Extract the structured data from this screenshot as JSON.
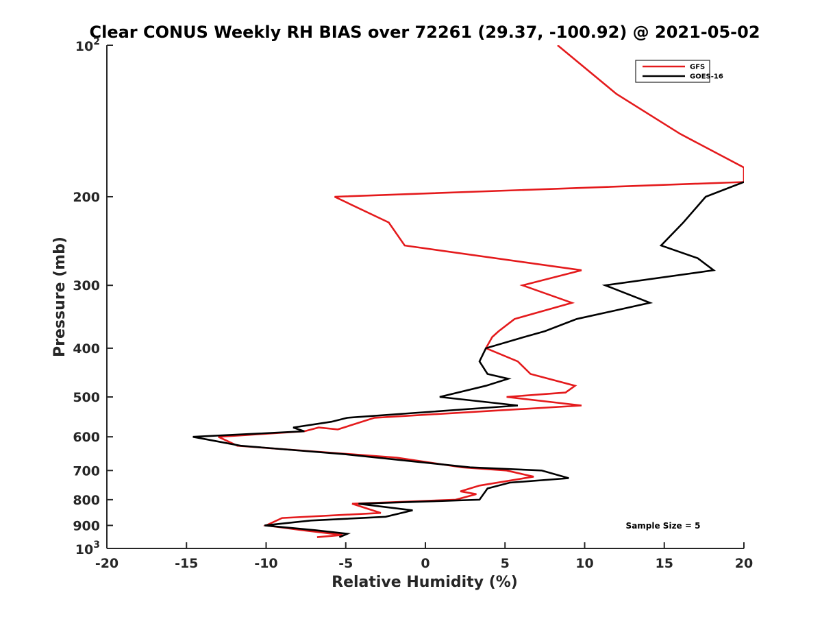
{
  "chart_data": {
    "type": "line",
    "title": "Clear CONUS Weekly RH BIAS over 72261 (29.37, -100.92) @ 2021-05-02",
    "xlabel": "Relative Humidity (%)",
    "ylabel": "Pressure (mb)",
    "xlim": [
      -20,
      20
    ],
    "ylim": [
      100,
      1000
    ],
    "y_scale": "log",
    "y_reversed": true,
    "x_ticks": [
      "-20",
      "-15",
      "-10",
      "-5",
      "0",
      "5",
      "10",
      "15",
      "20"
    ],
    "y_ticks": [
      {
        "value": 100,
        "base": "10",
        "exp": "2"
      },
      {
        "value": 200,
        "label": "200"
      },
      {
        "value": 300,
        "label": "300"
      },
      {
        "value": 400,
        "label": "400"
      },
      {
        "value": 500,
        "label": "500"
      },
      {
        "value": 600,
        "label": "600"
      },
      {
        "value": 700,
        "label": "700"
      },
      {
        "value": 800,
        "label": "800"
      },
      {
        "value": 900,
        "label": "900"
      },
      {
        "value": 1000,
        "base": "10",
        "exp": "3"
      }
    ],
    "legend_position": "top-right",
    "annotation": "Sample Size = 5",
    "series": [
      {
        "name": "GFS",
        "color": "#e41a1c",
        "points": [
          [
            8.3,
            100
          ],
          [
            12.0,
            125
          ],
          [
            16.0,
            150
          ],
          [
            20.0,
            175
          ],
          [
            20.0,
            187
          ],
          [
            -5.7,
            200
          ],
          [
            -2.3,
            225
          ],
          [
            -1.3,
            250
          ],
          [
            9.8,
            280
          ],
          [
            6.1,
            300
          ],
          [
            9.2,
            325
          ],
          [
            5.6,
            350
          ],
          [
            4.6,
            370
          ],
          [
            4.2,
            380
          ],
          [
            3.8,
            400
          ],
          [
            5.8,
            425
          ],
          [
            6.6,
            450
          ],
          [
            9.4,
            475
          ],
          [
            8.8,
            490
          ],
          [
            5.1,
            500
          ],
          [
            9.8,
            520
          ],
          [
            -3.2,
            550
          ],
          [
            -5.5,
            580
          ],
          [
            -6.7,
            575
          ],
          [
            -7.6,
            585
          ],
          [
            -13.0,
            600
          ],
          [
            -11.8,
            625
          ],
          [
            -1.8,
            660
          ],
          [
            2.3,
            690
          ],
          [
            5.1,
            700
          ],
          [
            6.8,
            720
          ],
          [
            3.4,
            750
          ],
          [
            2.2,
            770
          ],
          [
            3.2,
            780
          ],
          [
            1.9,
            800
          ],
          [
            -4.6,
            815
          ],
          [
            -2.8,
            850
          ],
          [
            -9.0,
            870
          ],
          [
            -10.0,
            900
          ],
          [
            -7.7,
            920
          ],
          [
            -5.2,
            940
          ],
          [
            -6.8,
            950
          ]
        ]
      },
      {
        "name": "GOES-16",
        "color": "#000000",
        "points": [
          [
            20.0,
            187
          ],
          [
            17.6,
            200
          ],
          [
            16.2,
            225
          ],
          [
            14.8,
            250
          ],
          [
            17.1,
            265
          ],
          [
            18.1,
            280
          ],
          [
            11.3,
            300
          ],
          [
            14.1,
            325
          ],
          [
            9.5,
            350
          ],
          [
            7.5,
            370
          ],
          [
            6.2,
            380
          ],
          [
            3.8,
            400
          ],
          [
            3.4,
            425
          ],
          [
            3.9,
            450
          ],
          [
            5.2,
            460
          ],
          [
            3.8,
            475
          ],
          [
            0.9,
            500
          ],
          [
            5.8,
            520
          ],
          [
            -4.9,
            550
          ],
          [
            -5.9,
            560
          ],
          [
            -8.3,
            575
          ],
          [
            -7.6,
            585
          ],
          [
            -14.6,
            600
          ],
          [
            -11.6,
            625
          ],
          [
            -5.0,
            650
          ],
          [
            2.8,
            690
          ],
          [
            7.3,
            700
          ],
          [
            9.0,
            725
          ],
          [
            5.3,
            740
          ],
          [
            3.9,
            760
          ],
          [
            3.4,
            800
          ],
          [
            -4.2,
            815
          ],
          [
            -0.8,
            840
          ],
          [
            -2.5,
            865
          ],
          [
            -7.2,
            880
          ],
          [
            -10.1,
            900
          ],
          [
            -6.9,
            920
          ],
          [
            -4.9,
            935
          ],
          [
            -5.4,
            950
          ]
        ]
      }
    ]
  }
}
